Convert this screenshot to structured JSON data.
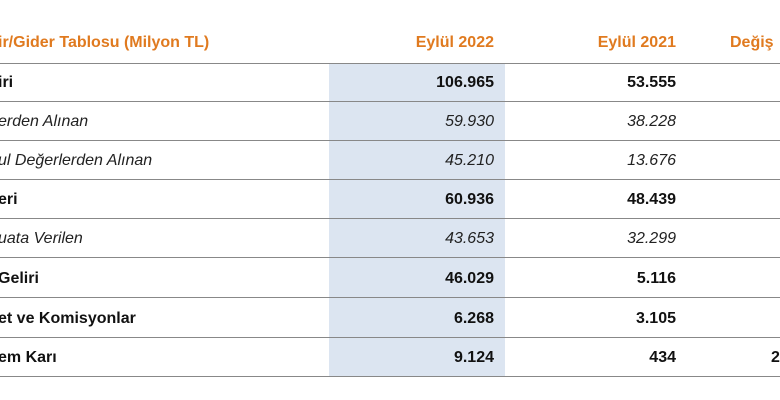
{
  "header": {
    "title": "ir/Gider Tablosu (Milyon TL)",
    "col_2022": "Eylül 2022",
    "col_2021": "Eylül 2021",
    "col_change": "Değiş"
  },
  "rows": [
    {
      "label": "iri",
      "v2022": "106.965",
      "v2021": "53.555",
      "change": "",
      "style": "bold"
    },
    {
      "label": "erden Alınan",
      "v2022": "59.930",
      "v2021": "38.228",
      "change": "",
      "style": "italic"
    },
    {
      "label": "ul Değerlerden Alınan",
      "v2022": "45.210",
      "v2021": "13.676",
      "change": "",
      "style": "italic"
    },
    {
      "label": "eri",
      "v2022": "60.936",
      "v2021": "48.439",
      "change": "",
      "style": "bold"
    },
    {
      "label": "uata Verilen",
      "v2022": "43.653",
      "v2021": "32.299",
      "change": "",
      "style": "italic"
    },
    {
      "label": " Geliri",
      "v2022": "46.029",
      "v2021": "5.116",
      "change": "",
      "style": "bold"
    },
    {
      "label": "et ve Komisyonlar",
      "v2022": "6.268",
      "v2021": "3.105",
      "change": "",
      "style": "bold"
    },
    {
      "label": "em Karı",
      "v2022": "9.124",
      "v2021": "434",
      "change": "2",
      "style": "bold"
    }
  ]
}
